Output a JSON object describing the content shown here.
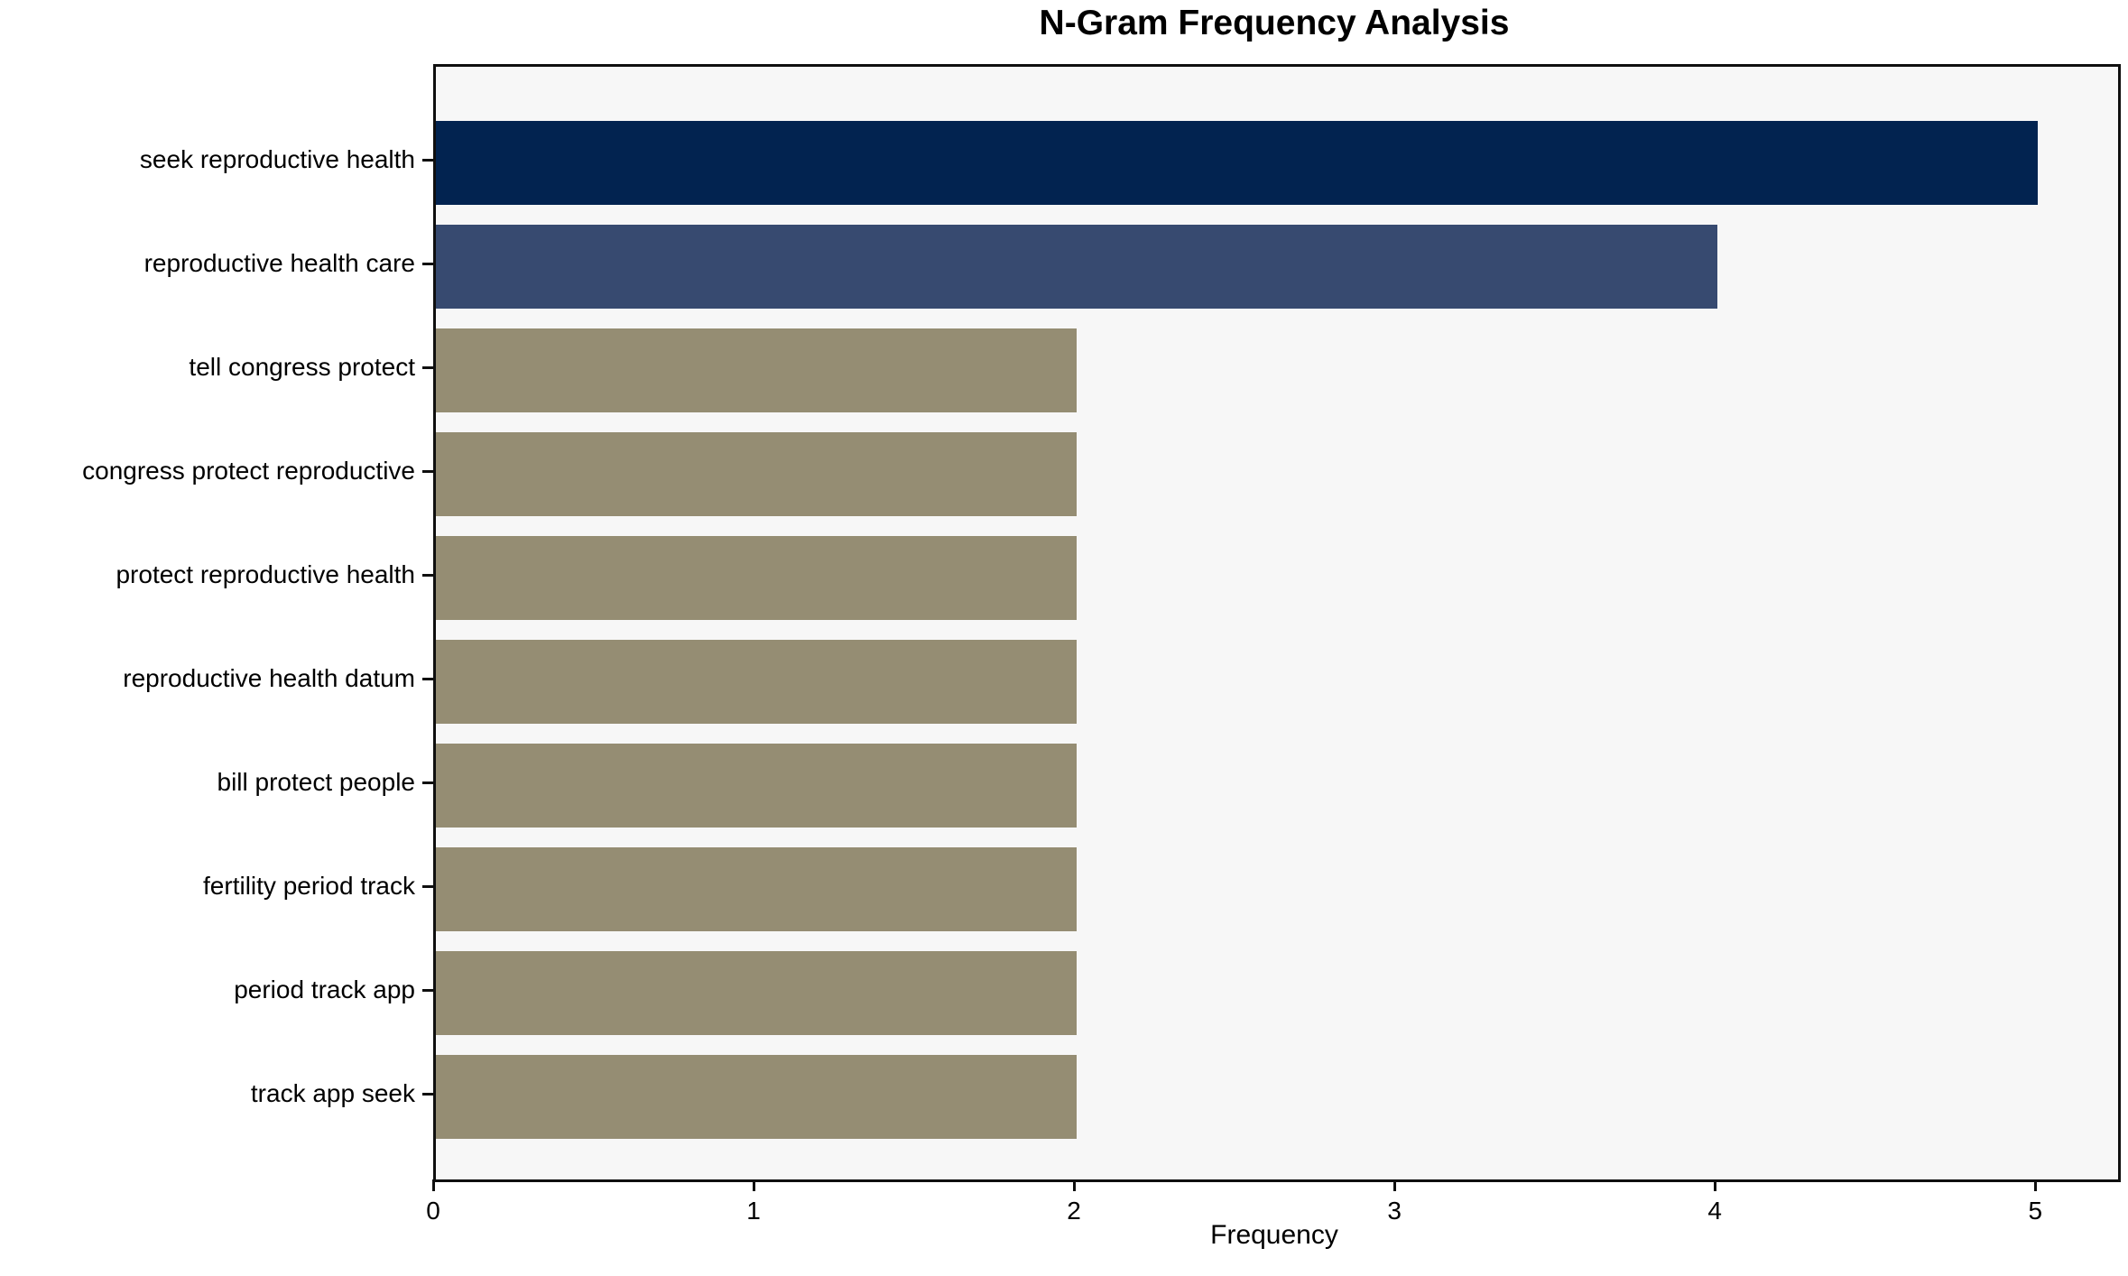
{
  "chart_data": {
    "type": "bar",
    "orientation": "horizontal",
    "title": "N-Gram Frequency Analysis",
    "xlabel": "Frequency",
    "ylabel": "",
    "categories": [
      "seek reproductive health",
      "reproductive health care",
      "tell congress protect",
      "congress protect reproductive",
      "protect reproductive health",
      "reproductive health datum",
      "bill protect people",
      "fertility period track",
      "period track app",
      "track app seek"
    ],
    "values": [
      5,
      4,
      2,
      2,
      2,
      2,
      2,
      2,
      2,
      2
    ],
    "bar_colors": [
      "#022350",
      "#374a70",
      "#958d73",
      "#958d73",
      "#958d73",
      "#958d73",
      "#958d73",
      "#958d73",
      "#958d73",
      "#958d73"
    ],
    "x_ticks": [
      "0",
      "1",
      "2",
      "3",
      "4",
      "5"
    ],
    "xlim": [
      0,
      5.25
    ],
    "grid": false,
    "legend": null,
    "plot_background": "#f7f7f7",
    "figure_background": "#ffffff",
    "spine_color": "#0f0f0f",
    "text_color": "#000000"
  }
}
